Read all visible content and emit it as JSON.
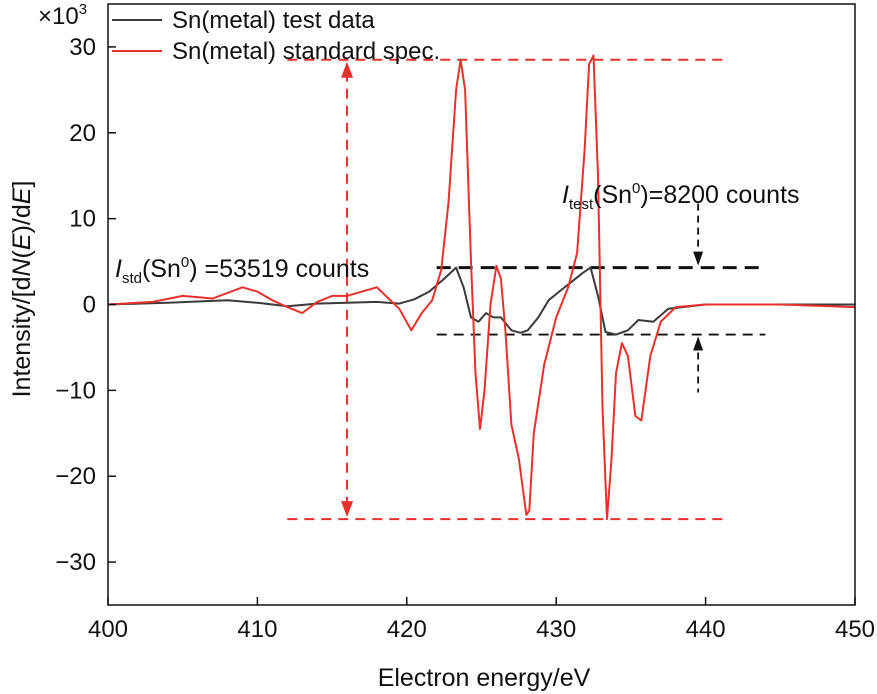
{
  "chart_data": {
    "type": "line",
    "xlabel": "Electron energy/eV",
    "ylabel_parts": [
      "Intensity/[d",
      "N",
      "(",
      "E",
      ")/d",
      "E",
      "]"
    ],
    "y_multiplier": "×10",
    "y_multiplier_exp": "3",
    "xlim": [
      400,
      450
    ],
    "ylim": [
      -35,
      35
    ],
    "xticks": [
      "400",
      "410",
      "420",
      "430",
      "440",
      "450"
    ],
    "yticks": [
      "30",
      "20",
      "10",
      "0",
      "−10",
      "−20",
      "−30"
    ],
    "series": [
      {
        "name": "Sn(metal) test data",
        "color": "#3a3a3a",
        "x": [
          400,
          404,
          408,
          410,
          412,
          414,
          416,
          418,
          419.5,
          420.5,
          421.5,
          422.5,
          423.3,
          423.8,
          424.3,
          424.8,
          425.3,
          425.8,
          426.3,
          427.0,
          427.6,
          428.1,
          428.8,
          429.5,
          430.2,
          431.0,
          431.8,
          432.3,
          432.8,
          433.3,
          434.0,
          434.8,
          435.5,
          436.5,
          437.5,
          440,
          445,
          450
        ],
        "y": [
          0,
          0.2,
          0.5,
          0.2,
          -0.2,
          0.1,
          0.2,
          0.3,
          0.1,
          0.6,
          1.5,
          3.0,
          4.3,
          2.0,
          -1.5,
          -2.0,
          -1.0,
          -1.5,
          -1.5,
          -3.0,
          -3.3,
          -3.0,
          -1.5,
          0.5,
          1.5,
          2.6,
          3.7,
          4.3,
          1.0,
          -3.2,
          -3.5,
          -3.0,
          -1.8,
          -2.0,
          -0.5,
          0,
          0,
          0
        ]
      },
      {
        "name": "Sn(metal) standard spec.",
        "color": "#e8302c",
        "x": [
          400,
          403,
          405,
          407,
          409,
          410,
          411,
          412,
          413,
          414,
          415,
          416,
          417,
          418,
          419.5,
          420.3,
          421.0,
          421.7,
          422.3,
          422.8,
          423.3,
          423.6,
          423.9,
          424.3,
          424.6,
          424.9,
          425.2,
          425.6,
          426.0,
          426.3,
          426.6,
          427.0,
          427.5,
          428.0,
          428.2,
          428.5,
          429.2,
          430.0,
          430.8,
          431.4,
          431.9,
          432.2,
          432.5,
          432.8,
          433.1,
          433.4,
          433.7,
          434.0,
          434.4,
          434.8,
          435.3,
          435.7,
          436.3,
          437.0,
          438,
          440,
          445,
          450
        ],
        "y": [
          0,
          0.3,
          1.0,
          0.7,
          2.0,
          1.5,
          0.5,
          -0.3,
          -1.0,
          0.3,
          1.0,
          1.0,
          1.5,
          2.0,
          -0.5,
          -3.0,
          -1.0,
          0.5,
          4.0,
          12.0,
          25.0,
          28.5,
          25.0,
          5.0,
          -8.0,
          -14.5,
          -10.0,
          0.0,
          4.5,
          3.0,
          -3.0,
          -14.0,
          -18.0,
          -24.5,
          -24.0,
          -15.0,
          -7.0,
          -1.5,
          2.0,
          6.0,
          18.0,
          28.0,
          29.0,
          15.0,
          -12.0,
          -25.0,
          -18.0,
          -8.0,
          -4.5,
          -6.0,
          -13.0,
          -13.5,
          -6.0,
          -2.0,
          -0.3,
          0,
          0,
          -0.3
        ]
      }
    ],
    "annotations": {
      "std_label": {
        "italic": "I",
        "sub": "std",
        "middle": "(Sn",
        "sup": "0",
        "rest": ") =53519 counts"
      },
      "test_label": {
        "italic": "I",
        "sub": "test",
        "middle": "(Sn",
        "sup": "0",
        "rest": ")=8200 counts"
      },
      "red_levels": {
        "top": 28.5,
        "bottom": -25,
        "x_arrow": 416,
        "x_start": 412,
        "x_end": 441.5
      },
      "black_levels": {
        "top": 4.3,
        "bottom": -3.5,
        "x_arrow": 439.5,
        "x_start": 422,
        "x_end": 444
      }
    }
  }
}
